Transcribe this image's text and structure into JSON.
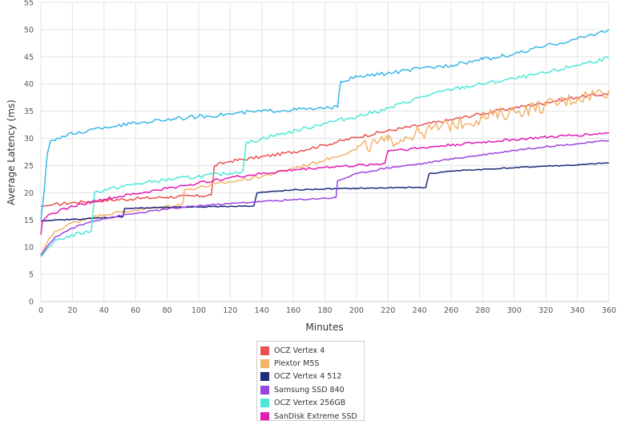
{
  "chart_data": {
    "type": "line",
    "title": "",
    "xlabel": "Minutes",
    "ylabel": "Average Latency (ms)",
    "xlim": [
      0,
      360
    ],
    "ylim": [
      0,
      55
    ],
    "xticks": [
      0,
      20,
      40,
      60,
      80,
      100,
      120,
      140,
      160,
      180,
      200,
      220,
      240,
      260,
      280,
      300,
      320,
      340,
      360
    ],
    "yticks": [
      0,
      5,
      10,
      15,
      20,
      25,
      30,
      35,
      40,
      45,
      50,
      55
    ],
    "grid": true,
    "legend_position": "bottom",
    "series": [
      {
        "name": "OCZ Vertex 4",
        "color": "#e8524f",
        "noise": 0.3,
        "points": [
          [
            0,
            17.5
          ],
          [
            20,
            18.2
          ],
          [
            40,
            18.6
          ],
          [
            60,
            18.9
          ],
          [
            80,
            19.2
          ],
          [
            100,
            19.4
          ],
          [
            108,
            19.6
          ],
          [
            110,
            25
          ],
          [
            120,
            25.8
          ],
          [
            140,
            26.6
          ],
          [
            160,
            27.5
          ],
          [
            180,
            28.8
          ],
          [
            200,
            30.2
          ],
          [
            220,
            31.4
          ],
          [
            240,
            32.4
          ],
          [
            260,
            33.4
          ],
          [
            280,
            34.6
          ],
          [
            300,
            35.6
          ],
          [
            320,
            36.6
          ],
          [
            340,
            37.6
          ],
          [
            360,
            38.2
          ]
        ]
      },
      {
        "name": "Plextor M5S",
        "color": "#f2b36b",
        "noise": 0.3,
        "points": [
          [
            0,
            8.5
          ],
          [
            5,
            11.5
          ],
          [
            10,
            13
          ],
          [
            20,
            14.5
          ],
          [
            30,
            15.3
          ],
          [
            40,
            16
          ],
          [
            60,
            16.8
          ],
          [
            80,
            17.5
          ],
          [
            90,
            18
          ],
          [
            91,
            20.5
          ],
          [
            100,
            21
          ],
          [
            120,
            22
          ],
          [
            140,
            23
          ],
          [
            160,
            24.5
          ],
          [
            180,
            26
          ],
          [
            200,
            28
          ],
          [
            220,
            29.5
          ],
          [
            240,
            31
          ],
          [
            260,
            32.5
          ],
          [
            280,
            33.8
          ],
          [
            300,
            35
          ],
          [
            320,
            36
          ],
          [
            340,
            37.5
          ],
          [
            360,
            38.8
          ]
        ],
        "noise_from": 200,
        "noise_late": 1.3
      },
      {
        "name": "OCZ Vertex 4 512",
        "color": "#1e2a7a",
        "noise": 0.1,
        "points": [
          [
            0,
            14.8
          ],
          [
            20,
            15.1
          ],
          [
            40,
            15.4
          ],
          [
            52,
            15.6
          ],
          [
            53,
            17.1
          ],
          [
            80,
            17.3
          ],
          [
            100,
            17.4
          ],
          [
            120,
            17.5
          ],
          [
            135,
            17.6
          ],
          [
            137,
            20
          ],
          [
            160,
            20.5
          ],
          [
            180,
            20.7
          ],
          [
            200,
            20.8
          ],
          [
            220,
            20.9
          ],
          [
            244,
            21
          ],
          [
            246,
            23.5
          ],
          [
            260,
            24
          ],
          [
            280,
            24.3
          ],
          [
            300,
            24.6
          ],
          [
            320,
            24.9
          ],
          [
            340,
            25.1
          ],
          [
            360,
            25.5
          ]
        ]
      },
      {
        "name": "Samsung SSD 840",
        "color": "#9a45e0",
        "noise": 0.15,
        "points": [
          [
            0,
            8.5
          ],
          [
            5,
            10.5
          ],
          [
            10,
            12
          ],
          [
            20,
            13.5
          ],
          [
            30,
            14.5
          ],
          [
            40,
            15.3
          ],
          [
            60,
            16.2
          ],
          [
            80,
            17
          ],
          [
            100,
            17.6
          ],
          [
            120,
            18
          ],
          [
            140,
            18.4
          ],
          [
            160,
            18.7
          ],
          [
            180,
            19
          ],
          [
            187,
            19.1
          ],
          [
            188,
            22.2
          ],
          [
            200,
            23.5
          ],
          [
            220,
            24.6
          ],
          [
            240,
            25.3
          ],
          [
            260,
            26.2
          ],
          [
            280,
            27
          ],
          [
            300,
            27.8
          ],
          [
            320,
            28.5
          ],
          [
            340,
            29
          ],
          [
            360,
            29.6
          ]
        ]
      },
      {
        "name": "OCZ Vertex 256GB",
        "color": "#4ee8d8",
        "noise": 0.35,
        "points": [
          [
            0,
            8.2
          ],
          [
            5,
            10
          ],
          [
            10,
            11.3
          ],
          [
            20,
            12.2
          ],
          [
            32,
            13
          ],
          [
            34,
            20
          ],
          [
            40,
            20.5
          ],
          [
            60,
            21.6
          ],
          [
            80,
            22.4
          ],
          [
            100,
            23
          ],
          [
            120,
            23.6
          ],
          [
            128,
            24
          ],
          [
            130,
            29
          ],
          [
            140,
            30
          ],
          [
            160,
            31.3
          ],
          [
            180,
            32.8
          ],
          [
            200,
            34
          ],
          [
            220,
            35.5
          ],
          [
            240,
            37.5
          ],
          [
            260,
            39
          ],
          [
            280,
            40
          ],
          [
            300,
            41
          ],
          [
            320,
            42
          ],
          [
            340,
            43.5
          ],
          [
            360,
            44.8
          ]
        ]
      },
      {
        "name": "SanDisk Extreme SSD",
        "color": "#e21bb4",
        "noise": 0.25,
        "points": [
          [
            0,
            12.3
          ],
          [
            1,
            14.8
          ],
          [
            5,
            16
          ],
          [
            20,
            17.5
          ],
          [
            40,
            18.8
          ],
          [
            60,
            19.8
          ],
          [
            80,
            20.8
          ],
          [
            100,
            21.8
          ],
          [
            120,
            22.8
          ],
          [
            140,
            23.5
          ],
          [
            160,
            24.2
          ],
          [
            180,
            24.7
          ],
          [
            200,
            25
          ],
          [
            218,
            25.4
          ],
          [
            220,
            27.8
          ],
          [
            240,
            28.2
          ],
          [
            260,
            28.8
          ],
          [
            280,
            29.3
          ],
          [
            300,
            29.8
          ],
          [
            320,
            30.2
          ],
          [
            340,
            30.6
          ],
          [
            360,
            31
          ]
        ]
      },
      {
        "name": "",
        "color": "#3ab8e6",
        "noise": 0.35,
        "points": [
          [
            0,
            15
          ],
          [
            2,
            20
          ],
          [
            4,
            27
          ],
          [
            6,
            29.5
          ],
          [
            10,
            30
          ],
          [
            20,
            30.8
          ],
          [
            40,
            32
          ],
          [
            60,
            32.8
          ],
          [
            80,
            33.5
          ],
          [
            100,
            34
          ],
          [
            120,
            34.5
          ],
          [
            140,
            35
          ],
          [
            160,
            35.3
          ],
          [
            180,
            35.5
          ],
          [
            188,
            35.7
          ],
          [
            190,
            40.5
          ],
          [
            200,
            41.3
          ],
          [
            220,
            42
          ],
          [
            240,
            42.8
          ],
          [
            260,
            43.5
          ],
          [
            280,
            44.5
          ],
          [
            300,
            45.5
          ],
          [
            320,
            47
          ],
          [
            340,
            48.3
          ],
          [
            360,
            50
          ]
        ]
      }
    ]
  }
}
